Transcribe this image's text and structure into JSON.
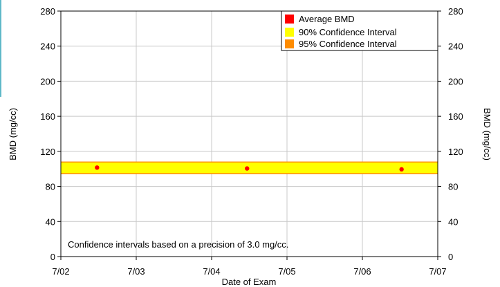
{
  "chart_data": {
    "type": "scatter",
    "xlabel": "Date of Exam",
    "ylabel_left": "BMD (mg/cc)",
    "ylabel_right": "BMD (mg/cc)",
    "x_tick_labels": [
      "7/02",
      "7/03",
      "7/04",
      "7/05",
      "7/06",
      "7/07"
    ],
    "x_ticks": [
      2002,
      2003,
      2004,
      2005,
      2006,
      2007
    ],
    "xlim": [
      2002,
      2007
    ],
    "y_ticks": [
      0,
      40,
      80,
      120,
      160,
      200,
      240,
      280
    ],
    "ylim": [
      0,
      280
    ],
    "grid": true,
    "legend_position": "top-right",
    "series": [
      {
        "name": "Average BMD",
        "color": "#ff0000",
        "x": [
          2002.48,
          2004.47,
          2006.52
        ],
        "values": [
          101.5,
          100.5,
          99.5
        ]
      }
    ],
    "bands": [
      {
        "name": "90% Confidence Interval",
        "color": "#ffff00",
        "range": [
          95.2,
          107.2
        ]
      },
      {
        "name": "95% Confidence Interval",
        "color": "#ff8c00",
        "range": [
          94.0,
          108.4
        ]
      }
    ],
    "annotation": "Confidence intervals based on a precision of 3.0 mg/cc."
  }
}
